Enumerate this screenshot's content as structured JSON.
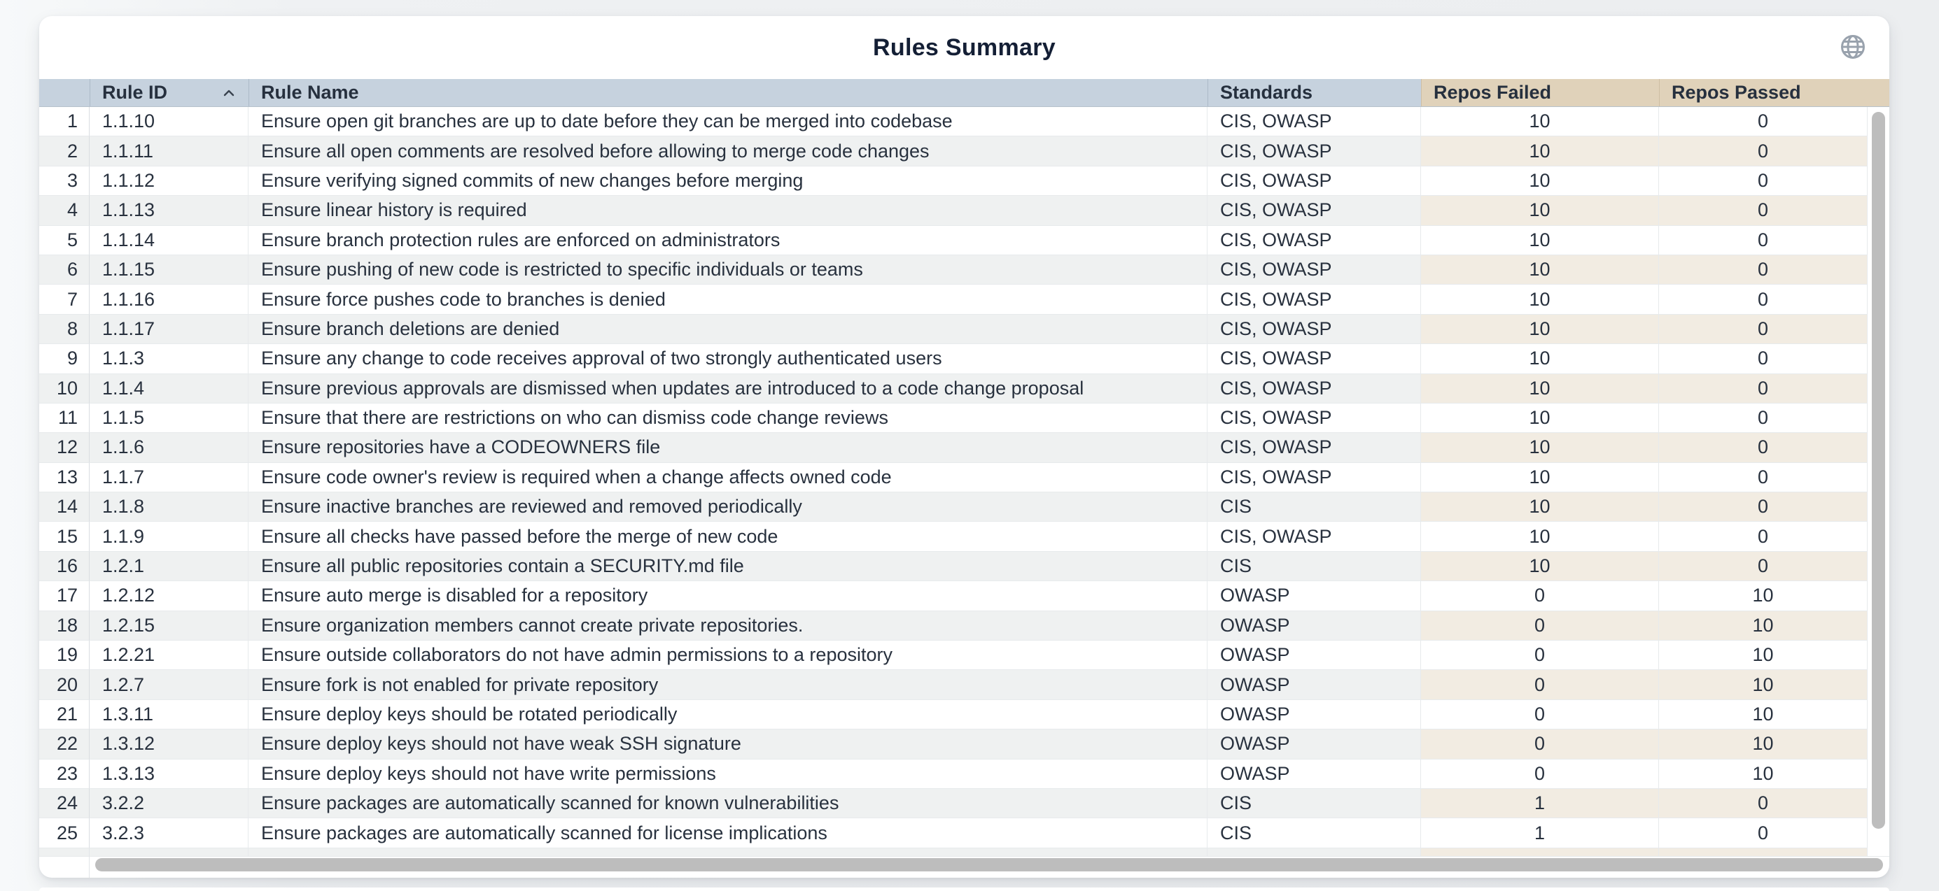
{
  "header": {
    "title": "Rules Summary"
  },
  "table": {
    "columns": [
      "",
      "Rule ID",
      "Rule Name",
      "Standards",
      "Repos Failed",
      "Repos Passed"
    ],
    "sort": {
      "column": "Rule ID",
      "direction": "ascending"
    },
    "rows": [
      {
        "num": 1,
        "rule_id": "1.1.10",
        "rule_name": "Ensure open git branches are up to date before they can be merged into codebase",
        "standards": "CIS, OWASP",
        "repos_failed": 10,
        "repos_passed": 0
      },
      {
        "num": 2,
        "rule_id": "1.1.11",
        "rule_name": "Ensure all open comments are resolved before allowing to merge code changes",
        "standards": "CIS, OWASP",
        "repos_failed": 10,
        "repos_passed": 0
      },
      {
        "num": 3,
        "rule_id": "1.1.12",
        "rule_name": "Ensure verifying signed commits of new changes before merging",
        "standards": "CIS, OWASP",
        "repos_failed": 10,
        "repos_passed": 0
      },
      {
        "num": 4,
        "rule_id": "1.1.13",
        "rule_name": "Ensure linear history is required",
        "standards": "CIS, OWASP",
        "repos_failed": 10,
        "repos_passed": 0
      },
      {
        "num": 5,
        "rule_id": "1.1.14",
        "rule_name": "Ensure branch protection rules are enforced on administrators",
        "standards": "CIS, OWASP",
        "repos_failed": 10,
        "repos_passed": 0
      },
      {
        "num": 6,
        "rule_id": "1.1.15",
        "rule_name": "Ensure pushing of new code is restricted to specific individuals or teams",
        "standards": "CIS, OWASP",
        "repos_failed": 10,
        "repos_passed": 0
      },
      {
        "num": 7,
        "rule_id": "1.1.16",
        "rule_name": "Ensure force pushes code to branches is denied",
        "standards": "CIS, OWASP",
        "repos_failed": 10,
        "repos_passed": 0
      },
      {
        "num": 8,
        "rule_id": "1.1.17",
        "rule_name": "Ensure branch deletions are denied",
        "standards": "CIS, OWASP",
        "repos_failed": 10,
        "repos_passed": 0
      },
      {
        "num": 9,
        "rule_id": "1.1.3",
        "rule_name": "Ensure any change to code receives approval of two strongly authenticated users",
        "standards": "CIS, OWASP",
        "repos_failed": 10,
        "repos_passed": 0
      },
      {
        "num": 10,
        "rule_id": "1.1.4",
        "rule_name": "Ensure previous approvals are dismissed when updates are introduced to a code change proposal",
        "standards": "CIS, OWASP",
        "repos_failed": 10,
        "repos_passed": 0
      },
      {
        "num": 11,
        "rule_id": "1.1.5",
        "rule_name": "Ensure that there are restrictions on who can dismiss code change reviews",
        "standards": "CIS, OWASP",
        "repos_failed": 10,
        "repos_passed": 0
      },
      {
        "num": 12,
        "rule_id": "1.1.6",
        "rule_name": "Ensure repositories have a CODEOWNERS file",
        "standards": "CIS, OWASP",
        "repos_failed": 10,
        "repos_passed": 0
      },
      {
        "num": 13,
        "rule_id": "1.1.7",
        "rule_name": "Ensure code owner's review is required when a change affects owned code",
        "standards": "CIS, OWASP",
        "repos_failed": 10,
        "repos_passed": 0
      },
      {
        "num": 14,
        "rule_id": "1.1.8",
        "rule_name": "Ensure inactive branches are reviewed and removed periodically",
        "standards": "CIS",
        "repos_failed": 10,
        "repos_passed": 0
      },
      {
        "num": 15,
        "rule_id": "1.1.9",
        "rule_name": "Ensure all checks have passed before the merge of new code",
        "standards": "CIS, OWASP",
        "repos_failed": 10,
        "repos_passed": 0
      },
      {
        "num": 16,
        "rule_id": "1.2.1",
        "rule_name": "Ensure all public repositories contain a SECURITY.md file",
        "standards": "CIS",
        "repos_failed": 10,
        "repos_passed": 0
      },
      {
        "num": 17,
        "rule_id": "1.2.12",
        "rule_name": "Ensure auto merge is disabled for a repository",
        "standards": "OWASP",
        "repos_failed": 0,
        "repos_passed": 10
      },
      {
        "num": 18,
        "rule_id": "1.2.15",
        "rule_name": "Ensure organization members cannot create private repositories.",
        "standards": "OWASP",
        "repos_failed": 0,
        "repos_passed": 10
      },
      {
        "num": 19,
        "rule_id": "1.2.21",
        "rule_name": "Ensure outside collaborators do not have admin permissions to a repository",
        "standards": "OWASP",
        "repos_failed": 0,
        "repos_passed": 10
      },
      {
        "num": 20,
        "rule_id": "1.2.7",
        "rule_name": "Ensure fork is not enabled for private repository",
        "standards": "OWASP",
        "repos_failed": 0,
        "repos_passed": 10
      },
      {
        "num": 21,
        "rule_id": "1.3.11",
        "rule_name": "Ensure deploy keys should be rotated periodically",
        "standards": "OWASP",
        "repos_failed": 0,
        "repos_passed": 10
      },
      {
        "num": 22,
        "rule_id": "1.3.12",
        "rule_name": "Ensure deploy keys should not have weak SSH signature",
        "standards": "OWASP",
        "repos_failed": 0,
        "repos_passed": 10
      },
      {
        "num": 23,
        "rule_id": "1.3.13",
        "rule_name": "Ensure deploy keys should not have write permissions",
        "standards": "OWASP",
        "repos_failed": 0,
        "repos_passed": 10
      },
      {
        "num": 24,
        "rule_id": "3.2.2",
        "rule_name": "Ensure packages are automatically scanned for known vulnerabilities",
        "standards": "CIS",
        "repos_failed": 1,
        "repos_passed": 0
      },
      {
        "num": 25,
        "rule_id": "3.2.3",
        "rule_name": "Ensure packages are automatically scanned for license implications",
        "standards": "CIS",
        "repos_failed": 1,
        "repos_passed": 0
      }
    ]
  },
  "icons": {
    "globe": "globe-icon",
    "sort": "sort-ascending-caret"
  },
  "colors": {
    "header_blue": "#c6d2de",
    "header_tan": "#e0d2ba",
    "stripe_gray": "#eff1f1",
    "stripe_tan": "#f2ece2",
    "title_text": "#141f35",
    "cell_text": "#28313e",
    "scrollbar_thumb": "#bdbdbd",
    "card_bg": "#ffffff",
    "page_bg": "#edeff1"
  }
}
